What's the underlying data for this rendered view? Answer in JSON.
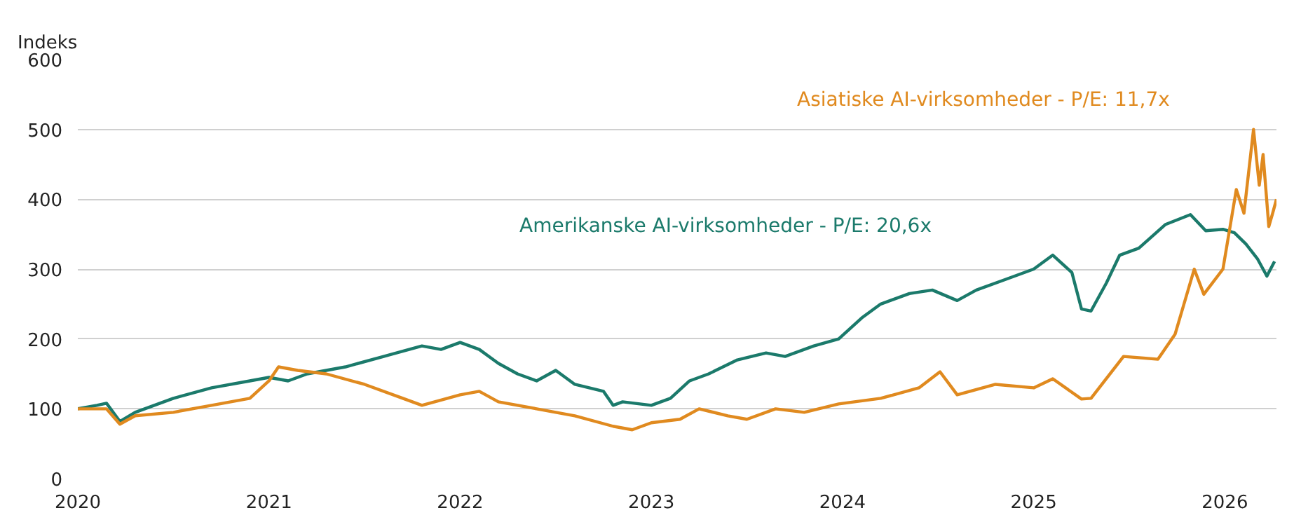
{
  "chart_data": {
    "type": "line",
    "ylabel": "Indeks",
    "xlim": [
      2020,
      2026.27
    ],
    "xticks": [
      2020,
      2021,
      2022,
      2023,
      2024,
      2025,
      2026
    ],
    "ylim": [
      0,
      600
    ],
    "yticks": [
      0,
      100,
      200,
      300,
      400,
      500,
      600
    ],
    "grid": "y",
    "legend": false,
    "series": [
      {
        "name": "Amerikanske AI-virksomheder - P/E: 20,6x",
        "color": "#1b7a6b",
        "x": [
          2020,
          2020.1,
          2020.15,
          2020.22,
          2020.3,
          2020.5,
          2020.7,
          2020.9,
          2021,
          2021.1,
          2021.2,
          2021.4,
          2021.6,
          2021.8,
          2021.9,
          2022,
          2022.1,
          2022.2,
          2022.3,
          2022.4,
          2022.5,
          2022.6,
          2022.75,
          2022.8,
          2022.85,
          2023,
          2023.1,
          2023.2,
          2023.3,
          2023.45,
          2023.6,
          2023.7,
          2023.85,
          2023.98,
          2024.1,
          2024.2,
          2024.35,
          2024.47,
          2024.6,
          2024.7,
          2024.85,
          2025,
          2025.1,
          2025.2,
          2025.25,
          2025.3,
          2025.38,
          2025.45,
          2025.55,
          2025.69,
          2025.82,
          2025.9,
          2025.99,
          2026.05,
          2026.11,
          2026.17,
          2026.22,
          2026.26
        ],
        "values": [
          100,
          105,
          108,
          82,
          95,
          115,
          130,
          140,
          145,
          140,
          150,
          160,
          175,
          190,
          185,
          195,
          185,
          165,
          150,
          140,
          155,
          135,
          125,
          105,
          110,
          105,
          115,
          140,
          150,
          170,
          180,
          175,
          190,
          200,
          230,
          250,
          265,
          270,
          255,
          270,
          285,
          300,
          320,
          295,
          243,
          240,
          280,
          320,
          330,
          364,
          378,
          355,
          357,
          352,
          336,
          315,
          290,
          311
        ]
      },
      {
        "name": "Asiatiske AI-virksomheder - P/E: 11,7x",
        "color": "#e08a1f",
        "x": [
          2020,
          2020.15,
          2020.22,
          2020.3,
          2020.5,
          2020.7,
          2020.9,
          2021,
          2021.05,
          2021.15,
          2021.3,
          2021.5,
          2021.7,
          2021.8,
          2022,
          2022.1,
          2022.2,
          2022.4,
          2022.6,
          2022.8,
          2022.9,
          2023,
          2023.15,
          2023.25,
          2023.4,
          2023.5,
          2023.65,
          2023.8,
          2023.98,
          2024.2,
          2024.4,
          2024.51,
          2024.6,
          2024.8,
          2025,
          2025.1,
          2025.25,
          2025.3,
          2025.47,
          2025.65,
          2025.74,
          2025.84,
          2025.89,
          2025.99,
          2026.06,
          2026.1,
          2026.15,
          2026.18,
          2026.2,
          2026.23,
          2026.25,
          2026.27
        ],
        "values": [
          100,
          100,
          78,
          90,
          95,
          105,
          115,
          140,
          160,
          155,
          150,
          135,
          115,
          105,
          120,
          125,
          110,
          100,
          90,
          75,
          70,
          80,
          85,
          100,
          90,
          85,
          100,
          95,
          107,
          115,
          130,
          153,
          120,
          135,
          130,
          143,
          114,
          115,
          175,
          171,
          207,
          300,
          264,
          300,
          414,
          380,
          500,
          420,
          464,
          361,
          380,
          400
        ]
      }
    ]
  }
}
